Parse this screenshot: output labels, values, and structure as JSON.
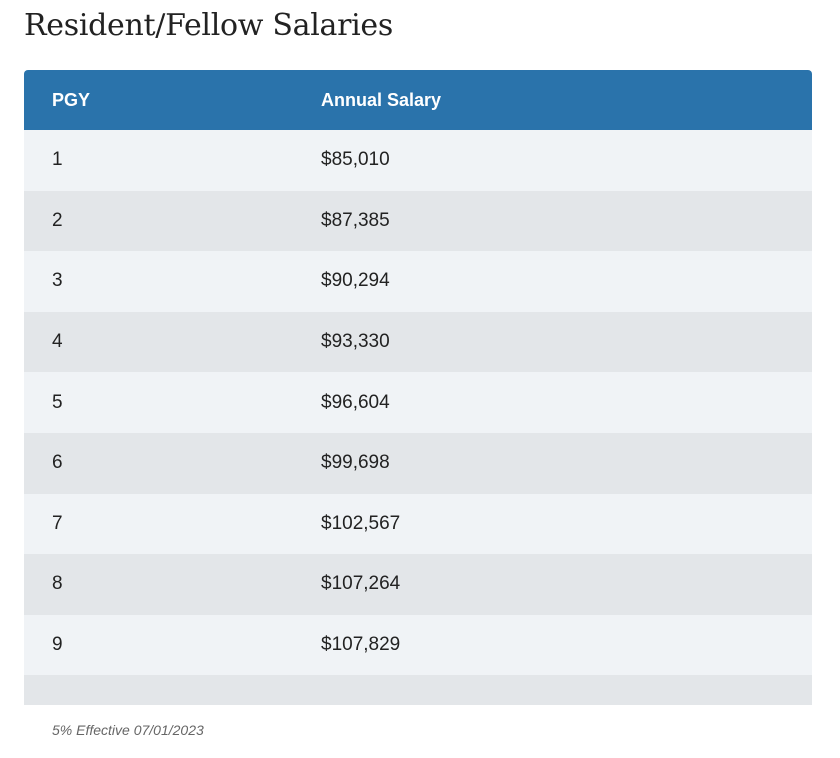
{
  "title": "Resident/Fellow Salaries",
  "table": {
    "headers": [
      "PGY",
      "Annual Salary"
    ],
    "rows": [
      [
        "1",
        "$85,010"
      ],
      [
        "2",
        "$87,385"
      ],
      [
        "3",
        "$90,294"
      ],
      [
        "4",
        "$93,330"
      ],
      [
        "5",
        "$96,604"
      ],
      [
        "6",
        "$99,698"
      ],
      [
        "7",
        "$102,567"
      ],
      [
        "8",
        "$107,264"
      ],
      [
        "9",
        "$107,829"
      ]
    ]
  },
  "note": "5% Effective 07/01/2023",
  "colors": {
    "header_bg": "#2a73ab",
    "row_light": "#f0f3f6",
    "row_dark": "#e3e6e9"
  }
}
